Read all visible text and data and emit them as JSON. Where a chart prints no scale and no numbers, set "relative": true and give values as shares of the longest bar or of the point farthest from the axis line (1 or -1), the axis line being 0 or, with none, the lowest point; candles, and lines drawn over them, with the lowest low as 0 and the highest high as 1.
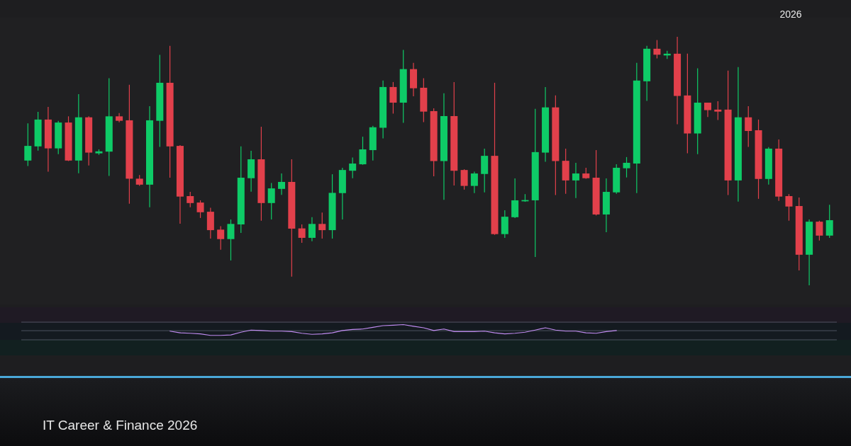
{
  "chart_data": [
    {
      "type": "candlestick",
      "relative": true,
      "annotations": [
        "2026",
        "IT Career & Finance 2026"
      ],
      "categories": [
        null,
        null,
        null,
        null,
        null,
        null,
        null,
        null,
        null,
        null,
        null,
        null,
        null,
        null,
        null,
        null,
        null,
        null,
        null,
        null,
        null,
        null,
        null,
        null,
        null,
        null,
        null,
        null,
        null,
        null,
        null,
        null,
        null,
        null,
        null,
        null,
        null,
        null,
        null,
        null,
        null,
        null,
        null,
        null,
        null,
        null,
        null,
        null,
        null,
        null,
        null,
        null,
        null,
        null,
        null,
        null,
        null,
        null,
        null,
        null,
        null,
        null,
        null,
        null,
        null,
        null,
        null,
        null,
        null,
        null,
        null,
        null,
        null,
        null,
        null,
        null,
        null,
        null,
        null,
        null
      ],
      "ohlc": [
        [
          0.502,
          0.652,
          0.48,
          0.561
        ],
        [
          0.559,
          0.698,
          0.542,
          0.667
        ],
        [
          0.667,
          0.718,
          0.457,
          0.551
        ],
        [
          0.551,
          0.662,
          0.528,
          0.655
        ],
        [
          0.655,
          0.68,
          0.5,
          0.502
        ],
        [
          0.502,
          0.769,
          0.451,
          0.676
        ],
        [
          0.676,
          0.68,
          0.482,
          0.534
        ],
        [
          0.531,
          0.547,
          0.525,
          0.539
        ],
        [
          0.538,
          0.833,
          0.44,
          0.68
        ],
        [
          0.68,
          0.693,
          0.656,
          0.662
        ],
        [
          0.664,
          0.807,
          0.328,
          0.429
        ],
        [
          0.429,
          0.444,
          0.4,
          0.405
        ],
        [
          0.405,
          0.721,
          0.314,
          0.664
        ],
        [
          0.662,
          0.927,
          0.557,
          0.815
        ],
        [
          0.815,
          0.964,
          0.433,
          0.559
        ],
        [
          0.561,
          0.564,
          0.248,
          0.357
        ],
        [
          0.359,
          0.376,
          0.314,
          0.331
        ],
        [
          0.333,
          0.342,
          0.271,
          0.294
        ],
        [
          0.296,
          0.312,
          0.188,
          0.222
        ],
        [
          0.224,
          0.238,
          0.143,
          0.186
        ],
        [
          0.186,
          0.265,
          0.1,
          0.247
        ],
        [
          0.245,
          0.559,
          0.211,
          0.433
        ],
        [
          0.431,
          0.541,
          0.377,
          0.507
        ],
        [
          0.507,
          0.638,
          0.26,
          0.331
        ],
        [
          0.331,
          0.412,
          0.265,
          0.39
        ],
        [
          0.388,
          0.45,
          0.364,
          0.416
        ],
        [
          0.416,
          0.507,
          0.035,
          0.228
        ],
        [
          0.229,
          0.245,
          0.171,
          0.191
        ],
        [
          0.191,
          0.274,
          0.177,
          0.247
        ],
        [
          0.247,
          0.293,
          0.188,
          0.222
        ],
        [
          0.222,
          0.447,
          0.188,
          0.372
        ],
        [
          0.371,
          0.473,
          0.265,
          0.464
        ],
        [
          0.461,
          0.514,
          0.431,
          0.49
        ],
        [
          0.487,
          0.598,
          0.485,
          0.547
        ],
        [
          0.544,
          0.642,
          0.502,
          0.636
        ],
        [
          0.634,
          0.824,
          0.591,
          0.798
        ],
        [
          0.798,
          0.818,
          0.691,
          0.735
        ],
        [
          0.735,
          0.947,
          0.654,
          0.87
        ],
        [
          0.87,
          0.895,
          0.761,
          0.793
        ],
        [
          0.795,
          0.833,
          0.657,
          0.699
        ],
        [
          0.701,
          0.712,
          0.439,
          0.5
        ],
        [
          0.5,
          0.773,
          0.344,
          0.681
        ],
        [
          0.681,
          0.818,
          0.402,
          0.461
        ],
        [
          0.464,
          0.467,
          0.385,
          0.4
        ],
        [
          0.4,
          0.457,
          0.371,
          0.45
        ],
        [
          0.448,
          0.55,
          0.374,
          0.521
        ],
        [
          0.521,
          0.815,
          0.203,
          0.206
        ],
        [
          0.206,
          0.302,
          0.191,
          0.276
        ],
        [
          0.274,
          0.43,
          0.271,
          0.342
        ],
        [
          0.338,
          0.367,
          0.336,
          0.343
        ],
        [
          0.342,
          0.71,
          0.114,
          0.536
        ],
        [
          0.534,
          0.798,
          0.497,
          0.716
        ],
        [
          0.716,
          0.764,
          0.363,
          0.5
        ],
        [
          0.501,
          0.55,
          0.368,
          0.422
        ],
        [
          0.422,
          0.493,
          0.351,
          0.45
        ],
        [
          0.45,
          0.473,
          0.429,
          0.431
        ],
        [
          0.433,
          0.544,
          0.281,
          0.285
        ],
        [
          0.285,
          0.43,
          0.214,
          0.376
        ],
        [
          0.374,
          0.487,
          0.368,
          0.473
        ],
        [
          0.471,
          0.516,
          0.434,
          0.493
        ],
        [
          0.49,
          0.895,
          0.371,
          0.824
        ],
        [
          0.821,
          0.964,
          0.742,
          0.952
        ],
        [
          0.952,
          0.987,
          0.913,
          0.928
        ],
        [
          0.925,
          0.944,
          0.911,
          0.932
        ],
        [
          0.932,
          1.0,
          0.648,
          0.762
        ],
        [
          0.764,
          0.932,
          0.531,
          0.611
        ],
        [
          0.611,
          0.873,
          0.528,
          0.735
        ],
        [
          0.735,
          0.735,
          0.677,
          0.705
        ],
        [
          0.707,
          0.741,
          0.665,
          0.699
        ],
        [
          0.707,
          0.864,
          0.363,
          0.422
        ],
        [
          0.422,
          0.878,
          0.337,
          0.676
        ],
        [
          0.676,
          0.721,
          0.557,
          0.621
        ],
        [
          0.624,
          0.667,
          0.348,
          0.428
        ],
        [
          0.428,
          0.556,
          0.405,
          0.55
        ],
        [
          0.55,
          0.587,
          0.34,
          0.357
        ],
        [
          0.359,
          0.367,
          0.26,
          0.317
        ],
        [
          0.319,
          0.353,
          0.06,
          0.123
        ],
        [
          0.123,
          0.265,
          0.0,
          0.256
        ],
        [
          0.256,
          0.26,
          0.18,
          0.2
        ],
        [
          0.2,
          0.324,
          0.191,
          0.262
        ]
      ],
      "colors": [
        "#0ecb67",
        "#0ecb67",
        "#e2404b",
        "#0ecb67",
        "#e2404b",
        "#0ecb67",
        "#e2404b",
        "#0ecb67",
        "#0ecb67",
        "#e2404b",
        "#e2404b",
        "#e2404b",
        "#0ecb67",
        "#0ecb67",
        "#e2404b",
        "#e2404b",
        "#e2404b",
        "#e2404b",
        "#e2404b",
        "#e2404b",
        "#0ecb67",
        "#0ecb67",
        "#0ecb67",
        "#e2404b",
        "#0ecb67",
        "#0ecb67",
        "#e2404b",
        "#e2404b",
        "#0ecb67",
        "#e2404b",
        "#0ecb67",
        "#0ecb67",
        "#0ecb67",
        "#0ecb67",
        "#0ecb67",
        "#0ecb67",
        "#e2404b",
        "#0ecb67",
        "#e2404b",
        "#e2404b",
        "#e2404b",
        "#0ecb67",
        "#e2404b",
        "#e2404b",
        "#0ecb67",
        "#0ecb67",
        "#e2404b",
        "#0ecb67",
        "#0ecb67",
        "#0ecb67",
        "#0ecb67",
        "#0ecb67",
        "#e2404b",
        "#e2404b",
        "#0ecb67",
        "#e2404b",
        "#e2404b",
        "#0ecb67",
        "#0ecb67",
        "#0ecb67",
        "#0ecb67",
        "#0ecb67",
        "#e2404b",
        "#0ecb67",
        "#e2404b",
        "#e2404b",
        "#0ecb67",
        "#e2404b",
        "#e2404b",
        "#e2404b",
        "#0ecb67",
        "#e2404b",
        "#e2404b",
        "#0ecb67",
        "#e2404b",
        "#e2404b",
        "#e2404b",
        "#0ecb67",
        "#e2404b",
        "#0ecb67"
      ]
    },
    {
      "type": "line",
      "relative": true,
      "ref_lines": [
        {
          "axis": "y",
          "value": 0.6,
          "color": "#5a6270"
        },
        {
          "axis": "y",
          "value": 1.16,
          "color": "#5a6270"
        }
      ],
      "categories": [
        null,
        null,
        null,
        null,
        null,
        null,
        null,
        null,
        null,
        null,
        null,
        null,
        null,
        null,
        null,
        null,
        null,
        null,
        null,
        null,
        null,
        null,
        null,
        null,
        null,
        null,
        null,
        null,
        null,
        null,
        null,
        null,
        null,
        null,
        null,
        null,
        null,
        null,
        null,
        null,
        null,
        null,
        null,
        null,
        null,
        null,
        null,
        null,
        null,
        null,
        null,
        null,
        null,
        null,
        null,
        null,
        null,
        null,
        null,
        null,
        null,
        null,
        null,
        null,
        null,
        null,
        null,
        null,
        null,
        null,
        null,
        null,
        null,
        null,
        null,
        null,
        null,
        null,
        null,
        null
      ],
      "series": [
        {
          "color": "#c08bf0",
          "values": [
            null,
            null,
            null,
            null,
            null,
            null,
            null,
            null,
            null,
            null,
            null,
            null,
            null,
            null,
            0.57,
            0.46,
            0.43,
            0.39,
            0.29,
            0.29,
            0.32,
            0.5,
            0.64,
            0.61,
            0.57,
            0.57,
            0.54,
            0.43,
            0.36,
            0.39,
            0.46,
            0.61,
            0.68,
            0.71,
            0.82,
            0.93,
            0.96,
            1,
            0.89,
            0.79,
            0.61,
            0.71,
            0.54,
            0.54,
            0.54,
            0.57,
            0.46,
            0.39,
            0.43,
            0.5,
            0.64,
            0.79,
            0.64,
            0.57,
            0.57,
            0.46,
            0.43,
            0.54,
            0.61,
            null,
            null,
            null,
            null,
            null,
            null,
            null,
            null,
            null,
            null,
            null,
            null,
            null,
            null,
            null,
            null,
            null,
            null,
            null,
            null,
            null
          ]
        }
      ]
    }
  ]
}
